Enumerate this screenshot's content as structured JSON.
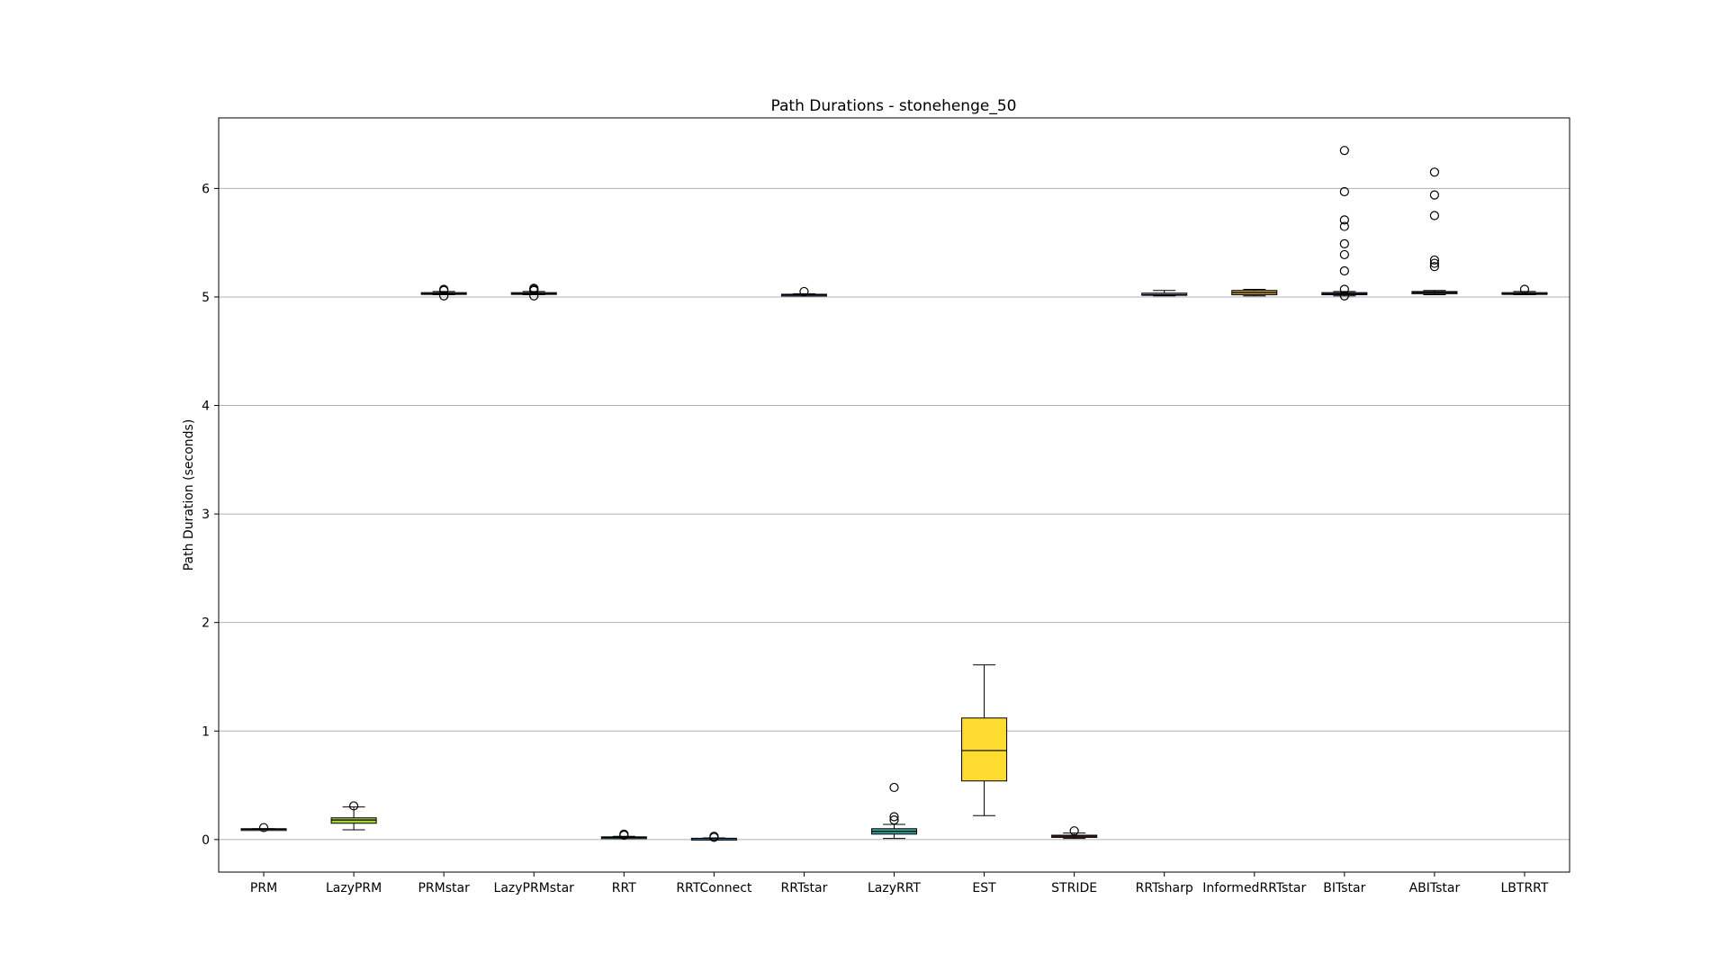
{
  "chart_data": {
    "type": "box",
    "title": "Path Durations - stonehenge_50",
    "xlabel": "",
    "ylabel": "Path Duration (seconds)",
    "ylim": [
      -0.3,
      6.65
    ],
    "yticks": [
      0,
      1,
      2,
      3,
      4,
      5,
      6
    ],
    "grid": "y",
    "categories": [
      "PRM",
      "LazyPRM",
      "PRMstar",
      "LazyPRMstar",
      "RRT",
      "RRTConnect",
      "RRTstar",
      "LazyRRT",
      "EST",
      "STRIDE",
      "RRTsharp",
      "InformedRRTstar",
      "BITstar",
      "ABITstar",
      "LBTRRT"
    ],
    "boxes": [
      {
        "name": "PRM",
        "whislo": 0.09,
        "q1": 0.09,
        "med": 0.095,
        "q3": 0.1,
        "whishi": 0.1,
        "fliers": [
          0.11
        ],
        "color": "#e7c9a0"
      },
      {
        "name": "LazyPRM",
        "whislo": 0.09,
        "q1": 0.15,
        "med": 0.18,
        "q3": 0.2,
        "whishi": 0.3,
        "fliers": [
          0.31
        ],
        "color": "#a9d13a"
      },
      {
        "name": "PRMstar",
        "whislo": 5.02,
        "q1": 5.025,
        "med": 5.03,
        "q3": 5.04,
        "whishi": 5.05,
        "fliers": [
          5.01,
          5.06,
          5.07
        ],
        "color": "#5fae5a"
      },
      {
        "name": "LazyPRMstar",
        "whislo": 5.02,
        "q1": 5.025,
        "med": 5.03,
        "q3": 5.04,
        "whishi": 5.05,
        "fliers": [
          5.01,
          5.06,
          5.07,
          5.08
        ],
        "color": "#3a9e7a"
      },
      {
        "name": "RRT",
        "whislo": 0.01,
        "q1": 0.015,
        "med": 0.02,
        "q3": 0.025,
        "whishi": 0.03,
        "fliers": [
          0.04,
          0.05
        ],
        "color": "#2f9aa0"
      },
      {
        "name": "RRTConnect",
        "whislo": 0.005,
        "q1": 0.008,
        "med": 0.01,
        "q3": 0.012,
        "whishi": 0.015,
        "fliers": [
          0.02,
          0.03
        ],
        "color": "#3a8ec7"
      },
      {
        "name": "RRTstar",
        "whislo": 5.01,
        "q1": 5.015,
        "med": 5.02,
        "q3": 5.025,
        "whishi": 5.03,
        "fliers": [
          5.05
        ],
        "color": "#4a78c9"
      },
      {
        "name": "LazyRRT",
        "whislo": 0.01,
        "q1": 0.05,
        "med": 0.075,
        "q3": 0.1,
        "whishi": 0.14,
        "fliers": [
          0.18,
          0.21,
          0.48
        ],
        "color": "#3aa79c"
      },
      {
        "name": "EST",
        "whislo": 0.22,
        "q1": 0.54,
        "med": 0.82,
        "q3": 1.12,
        "whishi": 1.61,
        "fliers": [],
        "color": "#fddb2f"
      },
      {
        "name": "STRIDE",
        "whislo": 0.01,
        "q1": 0.02,
        "med": 0.03,
        "q3": 0.04,
        "whishi": 0.06,
        "fliers": [
          0.08
        ],
        "color": "#e56b4b"
      },
      {
        "name": "RRTsharp",
        "whislo": 5.01,
        "q1": 5.015,
        "med": 5.02,
        "q3": 5.035,
        "whishi": 5.06,
        "fliers": [],
        "color": "#9b7bbd"
      },
      {
        "name": "InformedRRTstar",
        "whislo": 5.01,
        "q1": 5.02,
        "med": 5.04,
        "q3": 5.06,
        "whishi": 5.07,
        "fliers": [],
        "color": "#c9a13e"
      },
      {
        "name": "BITstar",
        "whislo": 5.01,
        "q1": 5.02,
        "med": 5.03,
        "q3": 5.04,
        "whishi": 5.05,
        "fliers": [
          5.01,
          5.07,
          5.24,
          5.39,
          5.49,
          5.65,
          5.71,
          5.97,
          6.35
        ],
        "color": "#6d8fd6"
      },
      {
        "name": "ABITstar",
        "whislo": 5.02,
        "q1": 5.03,
        "med": 5.04,
        "q3": 5.05,
        "whishi": 5.06,
        "fliers": [
          5.28,
          5.31,
          5.34,
          5.75,
          5.94,
          6.15
        ],
        "color": "#d66fa3"
      },
      {
        "name": "LBTRRT",
        "whislo": 5.02,
        "q1": 5.025,
        "med": 5.03,
        "q3": 5.04,
        "whishi": 5.05,
        "fliers": [
          5.07
        ],
        "color": "#7dc9c2"
      }
    ]
  }
}
